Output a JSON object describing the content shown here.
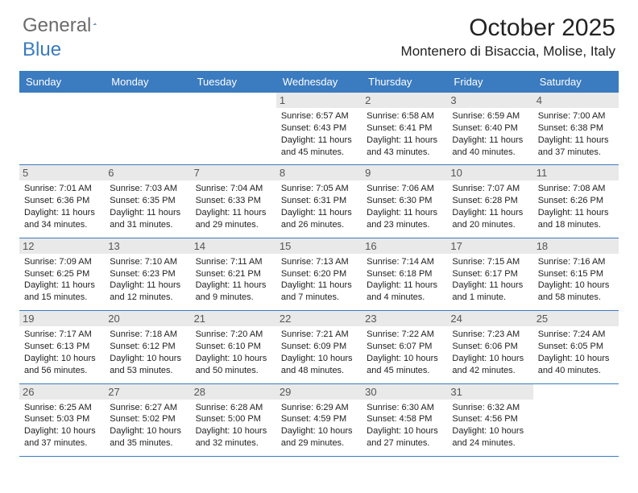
{
  "brand": {
    "name_gray": "General",
    "name_blue": "Blue"
  },
  "title": "October 2025",
  "location": "Montenero di Bisaccia, Molise, Italy",
  "colors": {
    "header_bg": "#3b7bbf",
    "header_text": "#ffffff",
    "daynum_bg": "#e9e9e9",
    "body_text": "#222222",
    "logo_gray": "#6b6b6b",
    "logo_blue": "#3b7bbf",
    "row_border": "#3b7bbf"
  },
  "weekdays": [
    "Sunday",
    "Monday",
    "Tuesday",
    "Wednesday",
    "Thursday",
    "Friday",
    "Saturday"
  ],
  "weeks": [
    [
      null,
      null,
      null,
      {
        "n": "1",
        "rise": "6:57 AM",
        "set": "6:43 PM",
        "dl1": "Daylight: 11 hours",
        "dl2": "and 45 minutes."
      },
      {
        "n": "2",
        "rise": "6:58 AM",
        "set": "6:41 PM",
        "dl1": "Daylight: 11 hours",
        "dl2": "and 43 minutes."
      },
      {
        "n": "3",
        "rise": "6:59 AM",
        "set": "6:40 PM",
        "dl1": "Daylight: 11 hours",
        "dl2": "and 40 minutes."
      },
      {
        "n": "4",
        "rise": "7:00 AM",
        "set": "6:38 PM",
        "dl1": "Daylight: 11 hours",
        "dl2": "and 37 minutes."
      }
    ],
    [
      {
        "n": "5",
        "rise": "7:01 AM",
        "set": "6:36 PM",
        "dl1": "Daylight: 11 hours",
        "dl2": "and 34 minutes."
      },
      {
        "n": "6",
        "rise": "7:03 AM",
        "set": "6:35 PM",
        "dl1": "Daylight: 11 hours",
        "dl2": "and 31 minutes."
      },
      {
        "n": "7",
        "rise": "7:04 AM",
        "set": "6:33 PM",
        "dl1": "Daylight: 11 hours",
        "dl2": "and 29 minutes."
      },
      {
        "n": "8",
        "rise": "7:05 AM",
        "set": "6:31 PM",
        "dl1": "Daylight: 11 hours",
        "dl2": "and 26 minutes."
      },
      {
        "n": "9",
        "rise": "7:06 AM",
        "set": "6:30 PM",
        "dl1": "Daylight: 11 hours",
        "dl2": "and 23 minutes."
      },
      {
        "n": "10",
        "rise": "7:07 AM",
        "set": "6:28 PM",
        "dl1": "Daylight: 11 hours",
        "dl2": "and 20 minutes."
      },
      {
        "n": "11",
        "rise": "7:08 AM",
        "set": "6:26 PM",
        "dl1": "Daylight: 11 hours",
        "dl2": "and 18 minutes."
      }
    ],
    [
      {
        "n": "12",
        "rise": "7:09 AM",
        "set": "6:25 PM",
        "dl1": "Daylight: 11 hours",
        "dl2": "and 15 minutes."
      },
      {
        "n": "13",
        "rise": "7:10 AM",
        "set": "6:23 PM",
        "dl1": "Daylight: 11 hours",
        "dl2": "and 12 minutes."
      },
      {
        "n": "14",
        "rise": "7:11 AM",
        "set": "6:21 PM",
        "dl1": "Daylight: 11 hours",
        "dl2": "and 9 minutes."
      },
      {
        "n": "15",
        "rise": "7:13 AM",
        "set": "6:20 PM",
        "dl1": "Daylight: 11 hours",
        "dl2": "and 7 minutes."
      },
      {
        "n": "16",
        "rise": "7:14 AM",
        "set": "6:18 PM",
        "dl1": "Daylight: 11 hours",
        "dl2": "and 4 minutes."
      },
      {
        "n": "17",
        "rise": "7:15 AM",
        "set": "6:17 PM",
        "dl1": "Daylight: 11 hours",
        "dl2": "and 1 minute."
      },
      {
        "n": "18",
        "rise": "7:16 AM",
        "set": "6:15 PM",
        "dl1": "Daylight: 10 hours",
        "dl2": "and 58 minutes."
      }
    ],
    [
      {
        "n": "19",
        "rise": "7:17 AM",
        "set": "6:13 PM",
        "dl1": "Daylight: 10 hours",
        "dl2": "and 56 minutes."
      },
      {
        "n": "20",
        "rise": "7:18 AM",
        "set": "6:12 PM",
        "dl1": "Daylight: 10 hours",
        "dl2": "and 53 minutes."
      },
      {
        "n": "21",
        "rise": "7:20 AM",
        "set": "6:10 PM",
        "dl1": "Daylight: 10 hours",
        "dl2": "and 50 minutes."
      },
      {
        "n": "22",
        "rise": "7:21 AM",
        "set": "6:09 PM",
        "dl1": "Daylight: 10 hours",
        "dl2": "and 48 minutes."
      },
      {
        "n": "23",
        "rise": "7:22 AM",
        "set": "6:07 PM",
        "dl1": "Daylight: 10 hours",
        "dl2": "and 45 minutes."
      },
      {
        "n": "24",
        "rise": "7:23 AM",
        "set": "6:06 PM",
        "dl1": "Daylight: 10 hours",
        "dl2": "and 42 minutes."
      },
      {
        "n": "25",
        "rise": "7:24 AM",
        "set": "6:05 PM",
        "dl1": "Daylight: 10 hours",
        "dl2": "and 40 minutes."
      }
    ],
    [
      {
        "n": "26",
        "rise": "6:25 AM",
        "set": "5:03 PM",
        "dl1": "Daylight: 10 hours",
        "dl2": "and 37 minutes."
      },
      {
        "n": "27",
        "rise": "6:27 AM",
        "set": "5:02 PM",
        "dl1": "Daylight: 10 hours",
        "dl2": "and 35 minutes."
      },
      {
        "n": "28",
        "rise": "6:28 AM",
        "set": "5:00 PM",
        "dl1": "Daylight: 10 hours",
        "dl2": "and 32 minutes."
      },
      {
        "n": "29",
        "rise": "6:29 AM",
        "set": "4:59 PM",
        "dl1": "Daylight: 10 hours",
        "dl2": "and 29 minutes."
      },
      {
        "n": "30",
        "rise": "6:30 AM",
        "set": "4:58 PM",
        "dl1": "Daylight: 10 hours",
        "dl2": "and 27 minutes."
      },
      {
        "n": "31",
        "rise": "6:32 AM",
        "set": "4:56 PM",
        "dl1": "Daylight: 10 hours",
        "dl2": "and 24 minutes."
      },
      null
    ]
  ],
  "labels": {
    "sunrise_prefix": "Sunrise: ",
    "sunset_prefix": "Sunset: "
  }
}
